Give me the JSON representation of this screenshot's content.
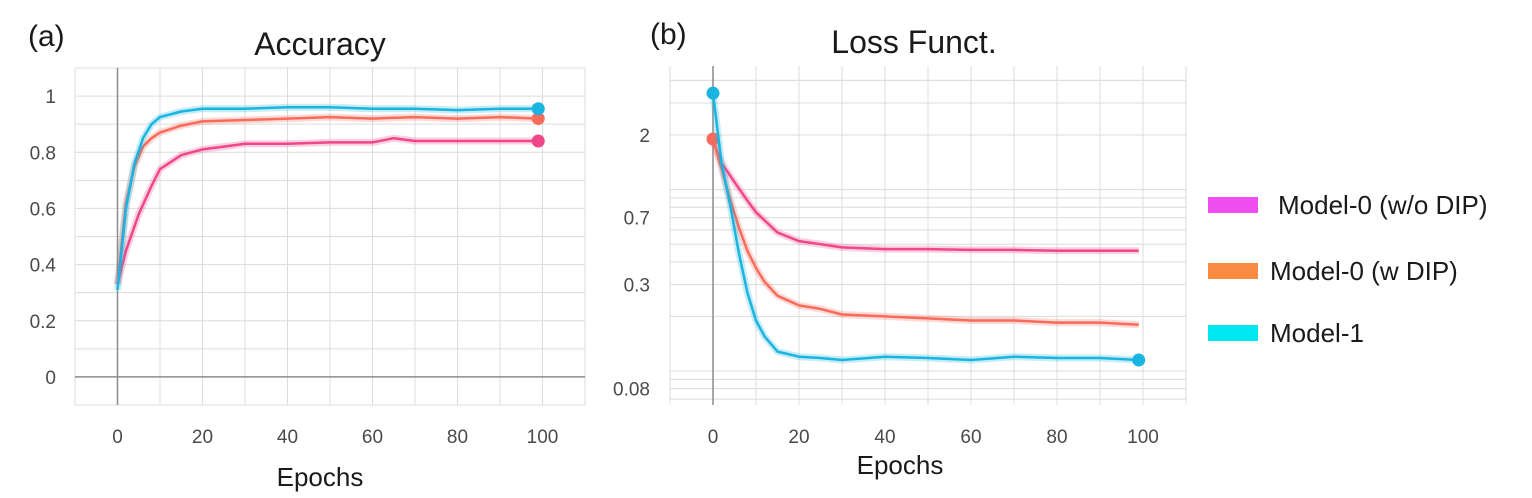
{
  "chart_data": [
    {
      "type": "line",
      "panel_label": "(a)",
      "title": "Accuracy",
      "xlabel": "Epochs",
      "ylabel": "",
      "xlim": [
        -10,
        110
      ],
      "ylim": [
        -0.1,
        1.1
      ],
      "xticks": [
        0,
        20,
        40,
        60,
        80,
        100
      ],
      "yticks": [
        0,
        0.2,
        0.4,
        0.6,
        0.8,
        1
      ],
      "ytick_labels": [
        "0",
        "0.2",
        "0.4",
        "0.6",
        "0.8",
        "1"
      ],
      "grid": true,
      "series": [
        {
          "name": "Model-0 (w/o DIP)",
          "color": "#f0468a",
          "x": [
            0,
            2,
            5,
            8,
            10,
            15,
            20,
            25,
            30,
            40,
            50,
            60,
            65,
            70,
            80,
            90,
            99
          ],
          "y": [
            0.33,
            0.45,
            0.58,
            0.68,
            0.74,
            0.79,
            0.81,
            0.82,
            0.83,
            0.83,
            0.835,
            0.835,
            0.85,
            0.84,
            0.84,
            0.84,
            0.84
          ]
        },
        {
          "name": "Model-0 (w DIP)",
          "color": "#f96b5a",
          "x": [
            0,
            2,
            4,
            6,
            8,
            10,
            15,
            20,
            30,
            40,
            50,
            60,
            70,
            80,
            90,
            99
          ],
          "y": [
            0.33,
            0.62,
            0.75,
            0.82,
            0.85,
            0.87,
            0.895,
            0.91,
            0.915,
            0.92,
            0.925,
            0.92,
            0.925,
            0.92,
            0.925,
            0.92
          ]
        },
        {
          "name": "Model-1",
          "color": "#1ab4e0",
          "x": [
            0,
            2,
            4,
            6,
            8,
            10,
            15,
            20,
            30,
            40,
            50,
            60,
            70,
            80,
            90,
            99
          ],
          "y": [
            0.31,
            0.6,
            0.76,
            0.85,
            0.9,
            0.925,
            0.945,
            0.955,
            0.955,
            0.96,
            0.96,
            0.955,
            0.955,
            0.95,
            0.955,
            0.955
          ]
        }
      ]
    },
    {
      "type": "line",
      "panel_label": "(b)",
      "title": "Loss Funct.",
      "xlabel": "Epochs",
      "ylabel": "",
      "yscale": "log",
      "xlim": [
        -10,
        110
      ],
      "ylim": [
        0.065,
        4.8
      ],
      "xticks": [
        0,
        20,
        40,
        60,
        80,
        100
      ],
      "yticks": [
        2,
        0.7,
        0.3,
        0.08
      ],
      "ytick_labels": [
        "2",
        "0.7",
        "0.3",
        "0.08"
      ],
      "grid": true,
      "series": [
        {
          "name": "Model-0 (w/o DIP)",
          "color": "#f0468a",
          "x": [
            0,
            2,
            5,
            8,
            10,
            15,
            20,
            25,
            30,
            40,
            50,
            60,
            70,
            80,
            90,
            99
          ],
          "y": [
            1.85,
            1.4,
            1.1,
            0.87,
            0.75,
            0.58,
            0.52,
            0.5,
            0.48,
            0.47,
            0.47,
            0.465,
            0.465,
            0.46,
            0.46,
            0.46
          ]
        },
        {
          "name": "Model-0 (w DIP)",
          "color": "#f96b5a",
          "x": [
            0,
            2,
            4,
            6,
            8,
            10,
            12,
            15,
            20,
            25,
            30,
            40,
            50,
            60,
            70,
            80,
            90,
            99
          ],
          "y": [
            1.9,
            1.3,
            0.88,
            0.62,
            0.46,
            0.37,
            0.31,
            0.26,
            0.23,
            0.22,
            0.205,
            0.2,
            0.195,
            0.19,
            0.19,
            0.185,
            0.185,
            0.18
          ]
        },
        {
          "name": "Model-1",
          "color": "#1ab4e0",
          "x": [
            0,
            2,
            4,
            6,
            8,
            10,
            12,
            15,
            20,
            25,
            30,
            40,
            50,
            60,
            70,
            80,
            90,
            99
          ],
          "y": [
            3.4,
            1.4,
            0.82,
            0.45,
            0.27,
            0.19,
            0.155,
            0.128,
            0.12,
            0.118,
            0.115,
            0.12,
            0.118,
            0.115,
            0.12,
            0.118,
            0.118,
            0.115
          ]
        }
      ]
    }
  ],
  "legend": {
    "items": [
      {
        "label": "Model-0 (w/o DIP)",
        "color": "#f04ef0"
      },
      {
        "label": "Model-0 (w DIP)",
        "color": "#f98a42"
      },
      {
        "label": "Model-1",
        "color": "#00e8f0"
      }
    ]
  }
}
